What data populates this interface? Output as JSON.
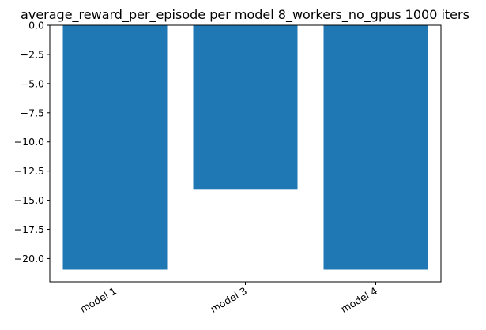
{
  "chart_data": {
    "type": "bar",
    "title": "average_reward_per_episode per model 8_workers_no_gpus 1000 iters",
    "xlabel": "",
    "ylabel": "",
    "categories": [
      "model 1",
      "model 3",
      "model 4"
    ],
    "values": [
      -20.95,
      -14.1,
      -20.95
    ],
    "ylim": [
      -22.0,
      0.0
    ],
    "yticks": [
      0.0,
      -2.5,
      -5.0,
      -7.5,
      -10.0,
      -12.5,
      -15.0,
      -17.5,
      -20.0
    ],
    "ytick_labels": [
      "0.0",
      "−2.5",
      "−5.0",
      "−7.5",
      "−10.0",
      "−12.5",
      "−15.0",
      "−17.5",
      "−20.0"
    ],
    "grid": false,
    "legend": "none",
    "colors": {
      "bar": "#1f77b4",
      "axis": "#000000",
      "background": "#ffffff"
    }
  }
}
